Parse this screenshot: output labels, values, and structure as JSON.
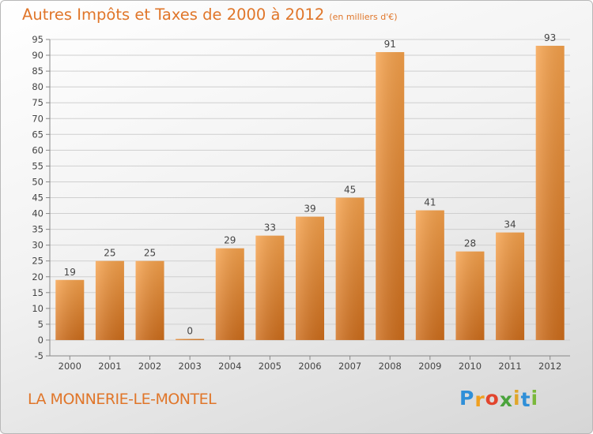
{
  "header": {
    "title": "Autres Impôts et Taxes de 2000 à 2012",
    "unit": "(en milliers d'€)"
  },
  "footer": {
    "place": "LA MONNERIE-LE-MONTEL",
    "logo_letters": [
      {
        "ch": "P",
        "color": "#2f8fd8"
      },
      {
        "ch": "r",
        "color": "#f0a020"
      },
      {
        "ch": "o",
        "color": "#e2452e"
      },
      {
        "ch": "x",
        "color": "#4aa33c"
      },
      {
        "ch": "i",
        "color": "#e0a62a"
      },
      {
        "ch": "t",
        "color": "#2f8fd8"
      },
      {
        "ch": "i",
        "color": "#7ab83a"
      }
    ]
  },
  "colors": {
    "bar": "#ef8f38",
    "text": "#e0762a",
    "grid": "#cfcfcf"
  },
  "chart_data": {
    "type": "bar",
    "title": "Autres Impôts et Taxes de 2000 à 2012",
    "categories": [
      "2000",
      "2001",
      "2002",
      "2003",
      "2004",
      "2005",
      "2006",
      "2007",
      "2008",
      "2009",
      "2010",
      "2011",
      "2012"
    ],
    "values": [
      19,
      25,
      25,
      0,
      29,
      33,
      39,
      45,
      91,
      41,
      28,
      34,
      93
    ],
    "ylim": [
      -5,
      95
    ],
    "yticks": [
      -5,
      0,
      5,
      10,
      15,
      20,
      25,
      30,
      35,
      40,
      45,
      50,
      55,
      60,
      65,
      70,
      75,
      80,
      85,
      90,
      95
    ],
    "grid": true,
    "xlabel": "",
    "ylabel": ""
  }
}
